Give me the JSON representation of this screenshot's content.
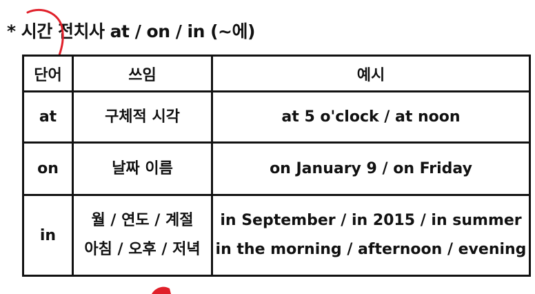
{
  "title": "* 시간 전치사 at / on / in (~에)",
  "table": {
    "headers": [
      "단어",
      "쓰임",
      "예시"
    ],
    "rows": [
      {
        "word": "at",
        "usage": [
          "구체적 시각"
        ],
        "examples": [
          "at 5 o'clock / at noon"
        ]
      },
      {
        "word": "on",
        "usage": [
          "날짜 이름"
        ],
        "examples": [
          "on January 9 / on Friday"
        ]
      },
      {
        "word": "in",
        "usage": [
          "월 / 연도 / 계절",
          "아침 / 오후 / 저녁"
        ],
        "examples": [
          "in September / in 2015 / in summer",
          "in the morning / afternoon / evening"
        ]
      }
    ]
  },
  "annotation_color": "#e0202a"
}
